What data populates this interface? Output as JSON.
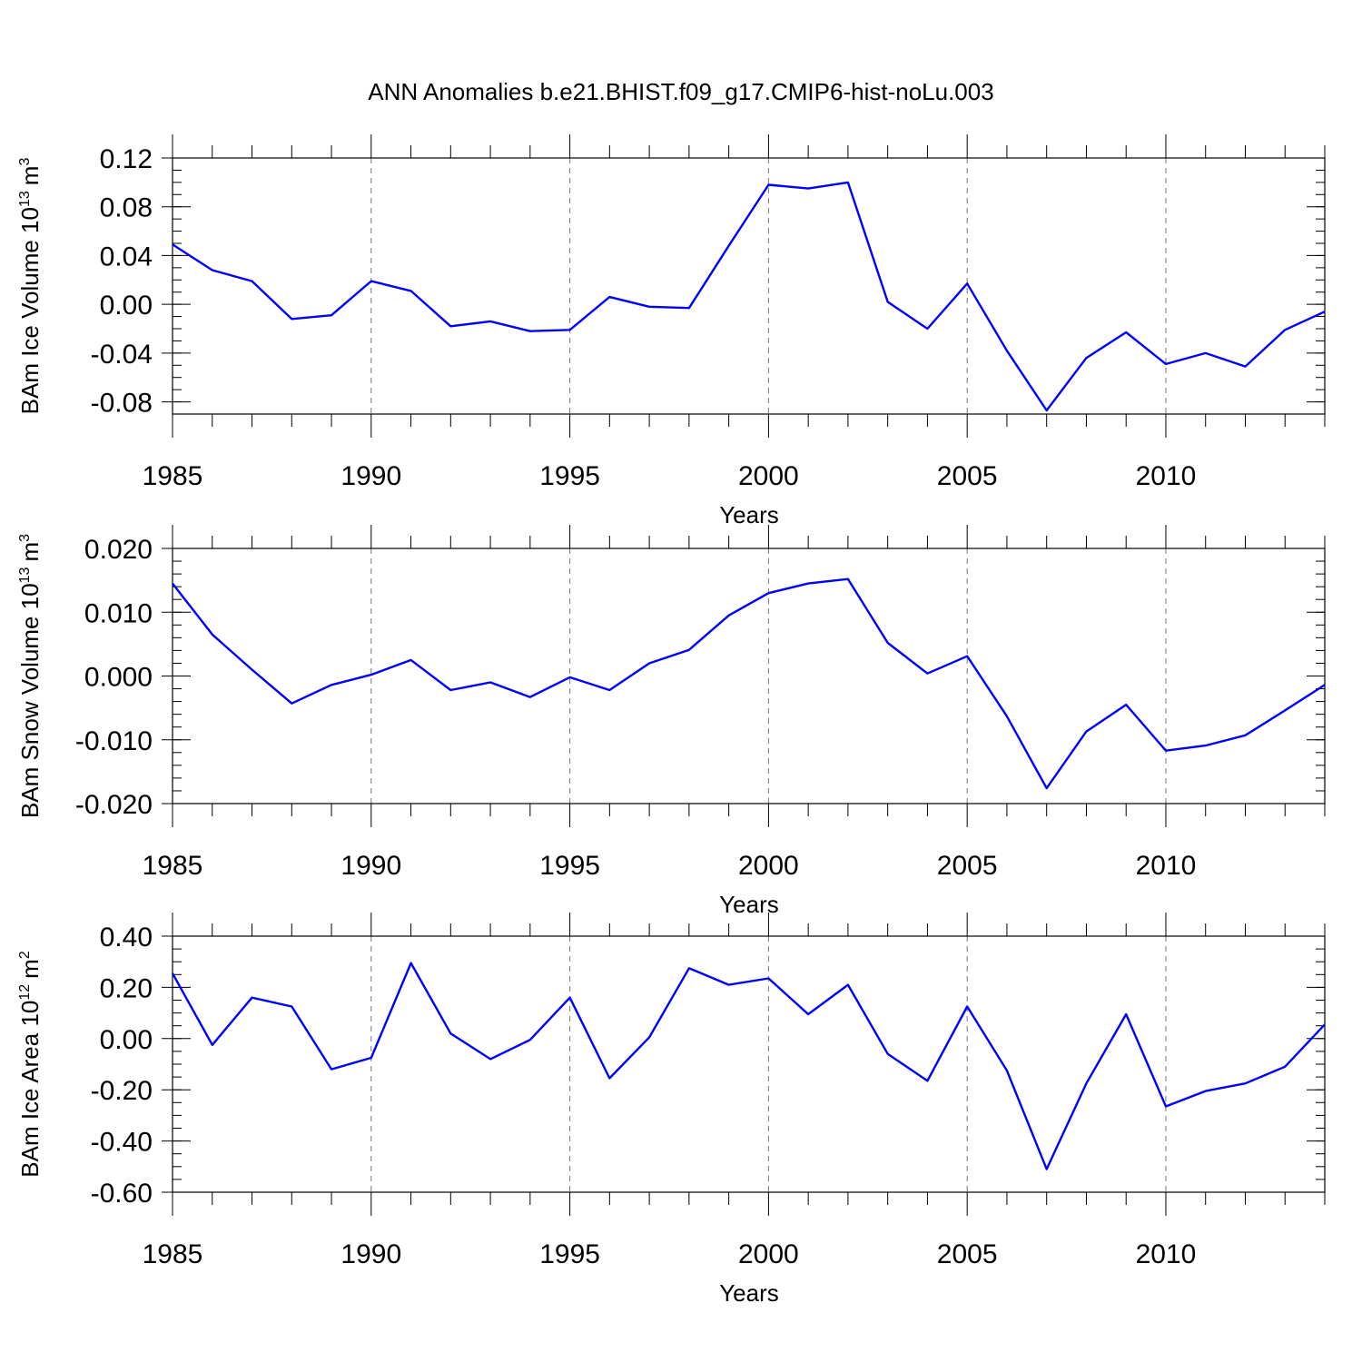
{
  "figure": {
    "title": "ANN Anomalies b.e21.BHIST.f09_g17.CMIP6-hist-noLu.003"
  },
  "colors": {
    "line": "#0000ff",
    "frame": "#000000",
    "grid": "#777777"
  },
  "chart_data": [
    {
      "type": "line",
      "name": "ice-volume",
      "ylabel_text": "BAm Ice Volume 10",
      "ylabel_exp": "13",
      "ylabel_unit": "m",
      "ylabel_unit_exp": "3",
      "xlabel": "Years",
      "xlim": [
        1985,
        2014
      ],
      "ylim": [
        -0.09,
        0.12
      ],
      "xticks": [
        "1985",
        "1990",
        "1995",
        "2000",
        "2005",
        "2010"
      ],
      "yticks": [
        {
          "v": 0.12,
          "label": "0.12"
        },
        {
          "v": 0.08,
          "label": "0.08"
        },
        {
          "v": 0.04,
          "label": "0.04"
        },
        {
          "v": 0.0,
          "label": "0.00"
        },
        {
          "v": -0.04,
          "label": "-0.04"
        },
        {
          "v": -0.08,
          "label": "-0.08"
        }
      ],
      "yminor": 0.01,
      "x": [
        1985,
        1986,
        1987,
        1988,
        1989,
        1990,
        1991,
        1992,
        1993,
        1994,
        1995,
        1996,
        1997,
        1998,
        1999,
        2000,
        2001,
        2002,
        2003,
        2004,
        2005,
        2006,
        2007,
        2008,
        2009,
        2010,
        2011,
        2012,
        2013,
        2014
      ],
      "y": [
        0.049,
        0.028,
        0.019,
        -0.012,
        -0.009,
        0.019,
        0.011,
        -0.018,
        -0.014,
        -0.022,
        -0.021,
        0.006,
        -0.002,
        -0.003,
        0.048,
        0.098,
        0.095,
        0.1,
        0.002,
        -0.02,
        0.017,
        -0.038,
        -0.087,
        -0.044,
        -0.023,
        -0.049,
        -0.04,
        -0.051,
        -0.021,
        -0.006
      ]
    },
    {
      "type": "line",
      "name": "snow-volume",
      "ylabel_text": "BAm Snow Volume 10",
      "ylabel_exp": "13",
      "ylabel_unit": "m",
      "ylabel_unit_exp": "3",
      "xlabel": "Years",
      "xlim": [
        1985,
        2014
      ],
      "ylim": [
        -0.02,
        0.02
      ],
      "xticks": [
        "1985",
        "1990",
        "1995",
        "2000",
        "2005",
        "2010"
      ],
      "yticks": [
        {
          "v": 0.02,
          "label": "0.020"
        },
        {
          "v": 0.01,
          "label": "0.010"
        },
        {
          "v": 0.0,
          "label": "0.000"
        },
        {
          "v": -0.01,
          "label": "-0.010"
        },
        {
          "v": -0.02,
          "label": "-0.020"
        }
      ],
      "yminor": 0.002,
      "x": [
        1985,
        1986,
        1987,
        1988,
        1989,
        1990,
        1991,
        1992,
        1993,
        1994,
        1995,
        1996,
        1997,
        1998,
        1999,
        2000,
        2001,
        2002,
        2003,
        2004,
        2005,
        2006,
        2007,
        2008,
        2009,
        2010,
        2011,
        2012,
        2013,
        2014
      ],
      "y": [
        0.0145,
        0.0065,
        0.001,
        -0.0043,
        -0.0014,
        0.0002,
        0.0025,
        -0.0022,
        -0.001,
        -0.0033,
        -0.0002,
        -0.0022,
        0.002,
        0.0041,
        0.0095,
        0.013,
        0.0145,
        0.0152,
        0.0052,
        0.0004,
        0.0031,
        -0.0063,
        -0.0176,
        -0.0087,
        -0.0045,
        -0.0117,
        -0.0109,
        -0.0093,
        -0.0054,
        -0.0014
      ]
    },
    {
      "type": "line",
      "name": "ice-area",
      "ylabel_text": "BAm Ice Area 10",
      "ylabel_exp": "12",
      "ylabel_unit": "m",
      "ylabel_unit_exp": "2",
      "xlabel": "Years",
      "xlim": [
        1985,
        2014
      ],
      "ylim": [
        -0.6,
        0.4
      ],
      "xticks": [
        "1985",
        "1990",
        "1995",
        "2000",
        "2005",
        "2010"
      ],
      "yticks": [
        {
          "v": 0.4,
          "label": "0.40"
        },
        {
          "v": 0.2,
          "label": "0.20"
        },
        {
          "v": 0.0,
          "label": "0.00"
        },
        {
          "v": -0.2,
          "label": "-0.20"
        },
        {
          "v": -0.4,
          "label": "-0.40"
        },
        {
          "v": -0.6,
          "label": "-0.60"
        }
      ],
      "yminor": 0.05,
      "x": [
        1985,
        1986,
        1987,
        1988,
        1989,
        1990,
        1991,
        1992,
        1993,
        1994,
        1995,
        1996,
        1997,
        1998,
        1999,
        2000,
        2001,
        2002,
        2003,
        2004,
        2005,
        2006,
        2007,
        2008,
        2009,
        2010,
        2011,
        2012,
        2013,
        2014
      ],
      "y": [
        0.255,
        -0.025,
        0.16,
        0.125,
        -0.12,
        -0.075,
        0.295,
        0.02,
        -0.08,
        -0.005,
        0.16,
        -0.155,
        0.005,
        0.275,
        0.21,
        0.235,
        0.095,
        0.21,
        -0.06,
        -0.165,
        0.125,
        -0.125,
        -0.51,
        -0.175,
        0.095,
        -0.265,
        -0.205,
        -0.175,
        -0.11,
        0.055
      ]
    }
  ]
}
